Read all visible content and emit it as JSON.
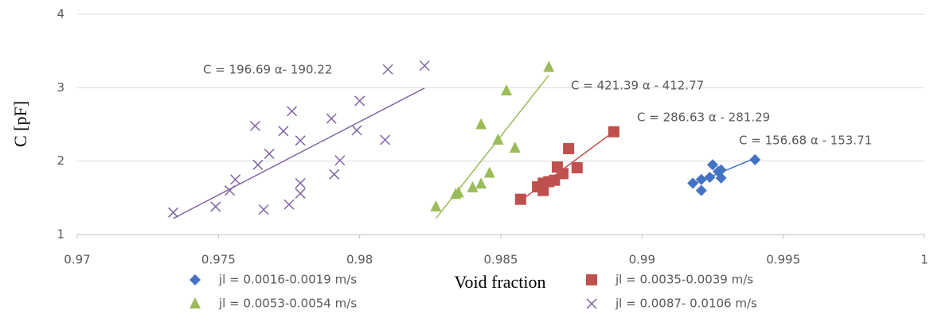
{
  "chart_data": {
    "type": "scatter",
    "xlabel": "Void fraction",
    "ylabel": "C [pF]",
    "xlim": [
      0.97,
      1
    ],
    "xticks": [
      0.97,
      0.975,
      0.98,
      0.985,
      0.99,
      0.995,
      1
    ],
    "ylim": [
      1,
      4
    ],
    "yticks": [
      1,
      2,
      3,
      4
    ],
    "grid": true,
    "annotations": [
      "C = 196.69 α- 190.22",
      "C = 421.39 α - 412.77",
      "C = 286.63 α - 281.29",
      "C = 156.68 α - 153.71"
    ],
    "series": [
      {
        "name": "jl = 0.0016-0.0019 m/s",
        "color": "#4472c4",
        "marker": "diamond",
        "x": [
          0.9918,
          0.9921,
          0.9921,
          0.9924,
          0.9925,
          0.9927,
          0.9928,
          0.9928,
          0.994
        ],
        "values": [
          1.7,
          1.6,
          1.75,
          1.78,
          1.95,
          1.86,
          1.77,
          1.88,
          2.02
        ]
      },
      {
        "name": "jl = 0.0035-0.0039 m/s",
        "color": "#c0504d",
        "marker": "square",
        "x": [
          0.9857,
          0.9863,
          0.9865,
          0.9865,
          0.9867,
          0.9869,
          0.987,
          0.9872,
          0.9874,
          0.9877,
          0.989
        ],
        "values": [
          1.48,
          1.65,
          1.7,
          1.6,
          1.72,
          1.74,
          1.92,
          1.83,
          2.17,
          1.91,
          2.4
        ]
      },
      {
        "name": "jl = 0.0053-0.0054 m/s",
        "color": "#9bbb59",
        "marker": "triangle",
        "x": [
          0.9827,
          0.9834,
          0.9835,
          0.984,
          0.9843,
          0.9843,
          0.9846,
          0.9849,
          0.9852,
          0.9855,
          0.9867
        ],
        "values": [
          1.38,
          1.55,
          1.57,
          1.64,
          2.5,
          1.69,
          1.84,
          2.29,
          2.96,
          2.18,
          3.28
        ]
      },
      {
        "name": "jl = 0.0087- 0.0106 m/s",
        "color": "#8064a2",
        "marker": "x",
        "x": [
          0.9734,
          0.9749,
          0.9754,
          0.9756,
          0.9763,
          0.9764,
          0.9766,
          0.9768,
          0.9773,
          0.9776,
          0.9775,
          0.9779,
          0.9779,
          0.9779,
          0.979,
          0.9791,
          0.9793,
          0.9799,
          0.98,
          0.9809,
          0.981,
          0.9823
        ],
        "values": [
          1.3,
          1.38,
          1.6,
          1.75,
          2.48,
          1.95,
          1.34,
          2.1,
          2.41,
          2.68,
          1.41,
          1.56,
          2.28,
          1.7,
          2.58,
          1.82,
          2.01,
          2.42,
          2.82,
          2.29,
          3.25,
          3.3
        ]
      }
    ]
  }
}
